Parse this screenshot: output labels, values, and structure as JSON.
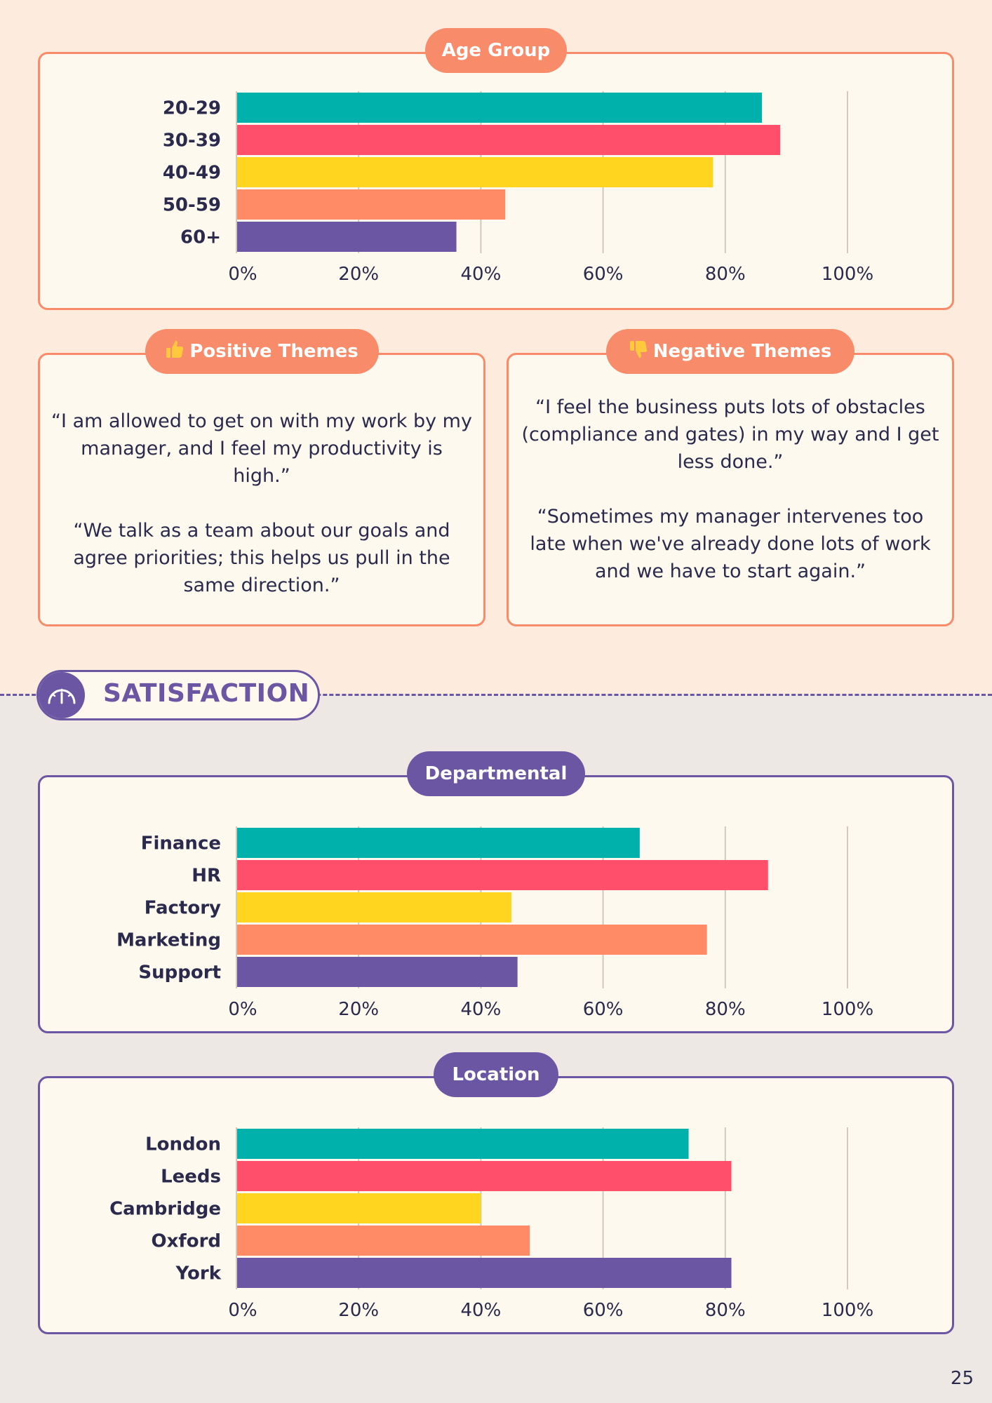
{
  "colors": {
    "teal": "#00b0aa",
    "pink": "#ff4f6a",
    "yellow": "#ffd520",
    "orange": "#ff8a66",
    "purple": "#6a56a2",
    "text": "#2b2a4c",
    "panel_bg": "#fef9ee"
  },
  "age_chart": {
    "label": "Age Group",
    "chart_data": {
      "type": "bar",
      "orientation": "horizontal",
      "categories": [
        "20-29",
        "30-39",
        "40-49",
        "50-59",
        "60+"
      ],
      "values": [
        86,
        89,
        78,
        44,
        36
      ],
      "colors": [
        "#00b0aa",
        "#ff4f6a",
        "#ffd520",
        "#ff8a66",
        "#6a56a2"
      ],
      "xlim": [
        0,
        100
      ],
      "xticks": [
        "0%",
        "20%",
        "40%",
        "60%",
        "80%",
        "100%"
      ],
      "grid": true
    }
  },
  "positive_themes": {
    "label": "Positive Themes",
    "icon": "thumbs-up-icon",
    "quotes": [
      "“I am allowed to get on with my work by my manager, and I feel my productivity is high.”",
      "“We talk as a team about our goals and agree priorities; this helps us pull in the same direction.”"
    ]
  },
  "negative_themes": {
    "label": "Negative Themes",
    "icon": "thumbs-down-icon",
    "quotes": [
      "“I feel the business puts lots of obstacles (compliance and gates) in my way and I get less done.”",
      "“Sometimes my manager intervenes too late when we've already done lots of work and we have to start again.”"
    ]
  },
  "section": {
    "title": "SATISFACTION",
    "icon": "gauge-icon"
  },
  "department_chart": {
    "label": "Departmental",
    "chart_data": {
      "type": "bar",
      "orientation": "horizontal",
      "categories": [
        "Finance",
        "HR",
        "Factory",
        "Marketing",
        "Support"
      ],
      "values": [
        66,
        87,
        45,
        77,
        46
      ],
      "colors": [
        "#00b0aa",
        "#ff4f6a",
        "#ffd520",
        "#ff8a66",
        "#6a56a2"
      ],
      "xlim": [
        0,
        100
      ],
      "xticks": [
        "0%",
        "20%",
        "40%",
        "60%",
        "80%",
        "100%"
      ],
      "grid": true
    }
  },
  "location_chart": {
    "label": "Location",
    "chart_data": {
      "type": "bar",
      "orientation": "horizontal",
      "categories": [
        "London",
        "Leeds",
        "Cambridge",
        "Oxford",
        "York"
      ],
      "values": [
        74,
        81,
        40,
        48,
        81
      ],
      "colors": [
        "#00b0aa",
        "#ff4f6a",
        "#ffd520",
        "#ff8a66",
        "#6a56a2"
      ],
      "xlim": [
        0,
        100
      ],
      "xticks": [
        "0%",
        "20%",
        "40%",
        "60%",
        "80%",
        "100%"
      ],
      "grid": true
    }
  },
  "page_number": "25"
}
